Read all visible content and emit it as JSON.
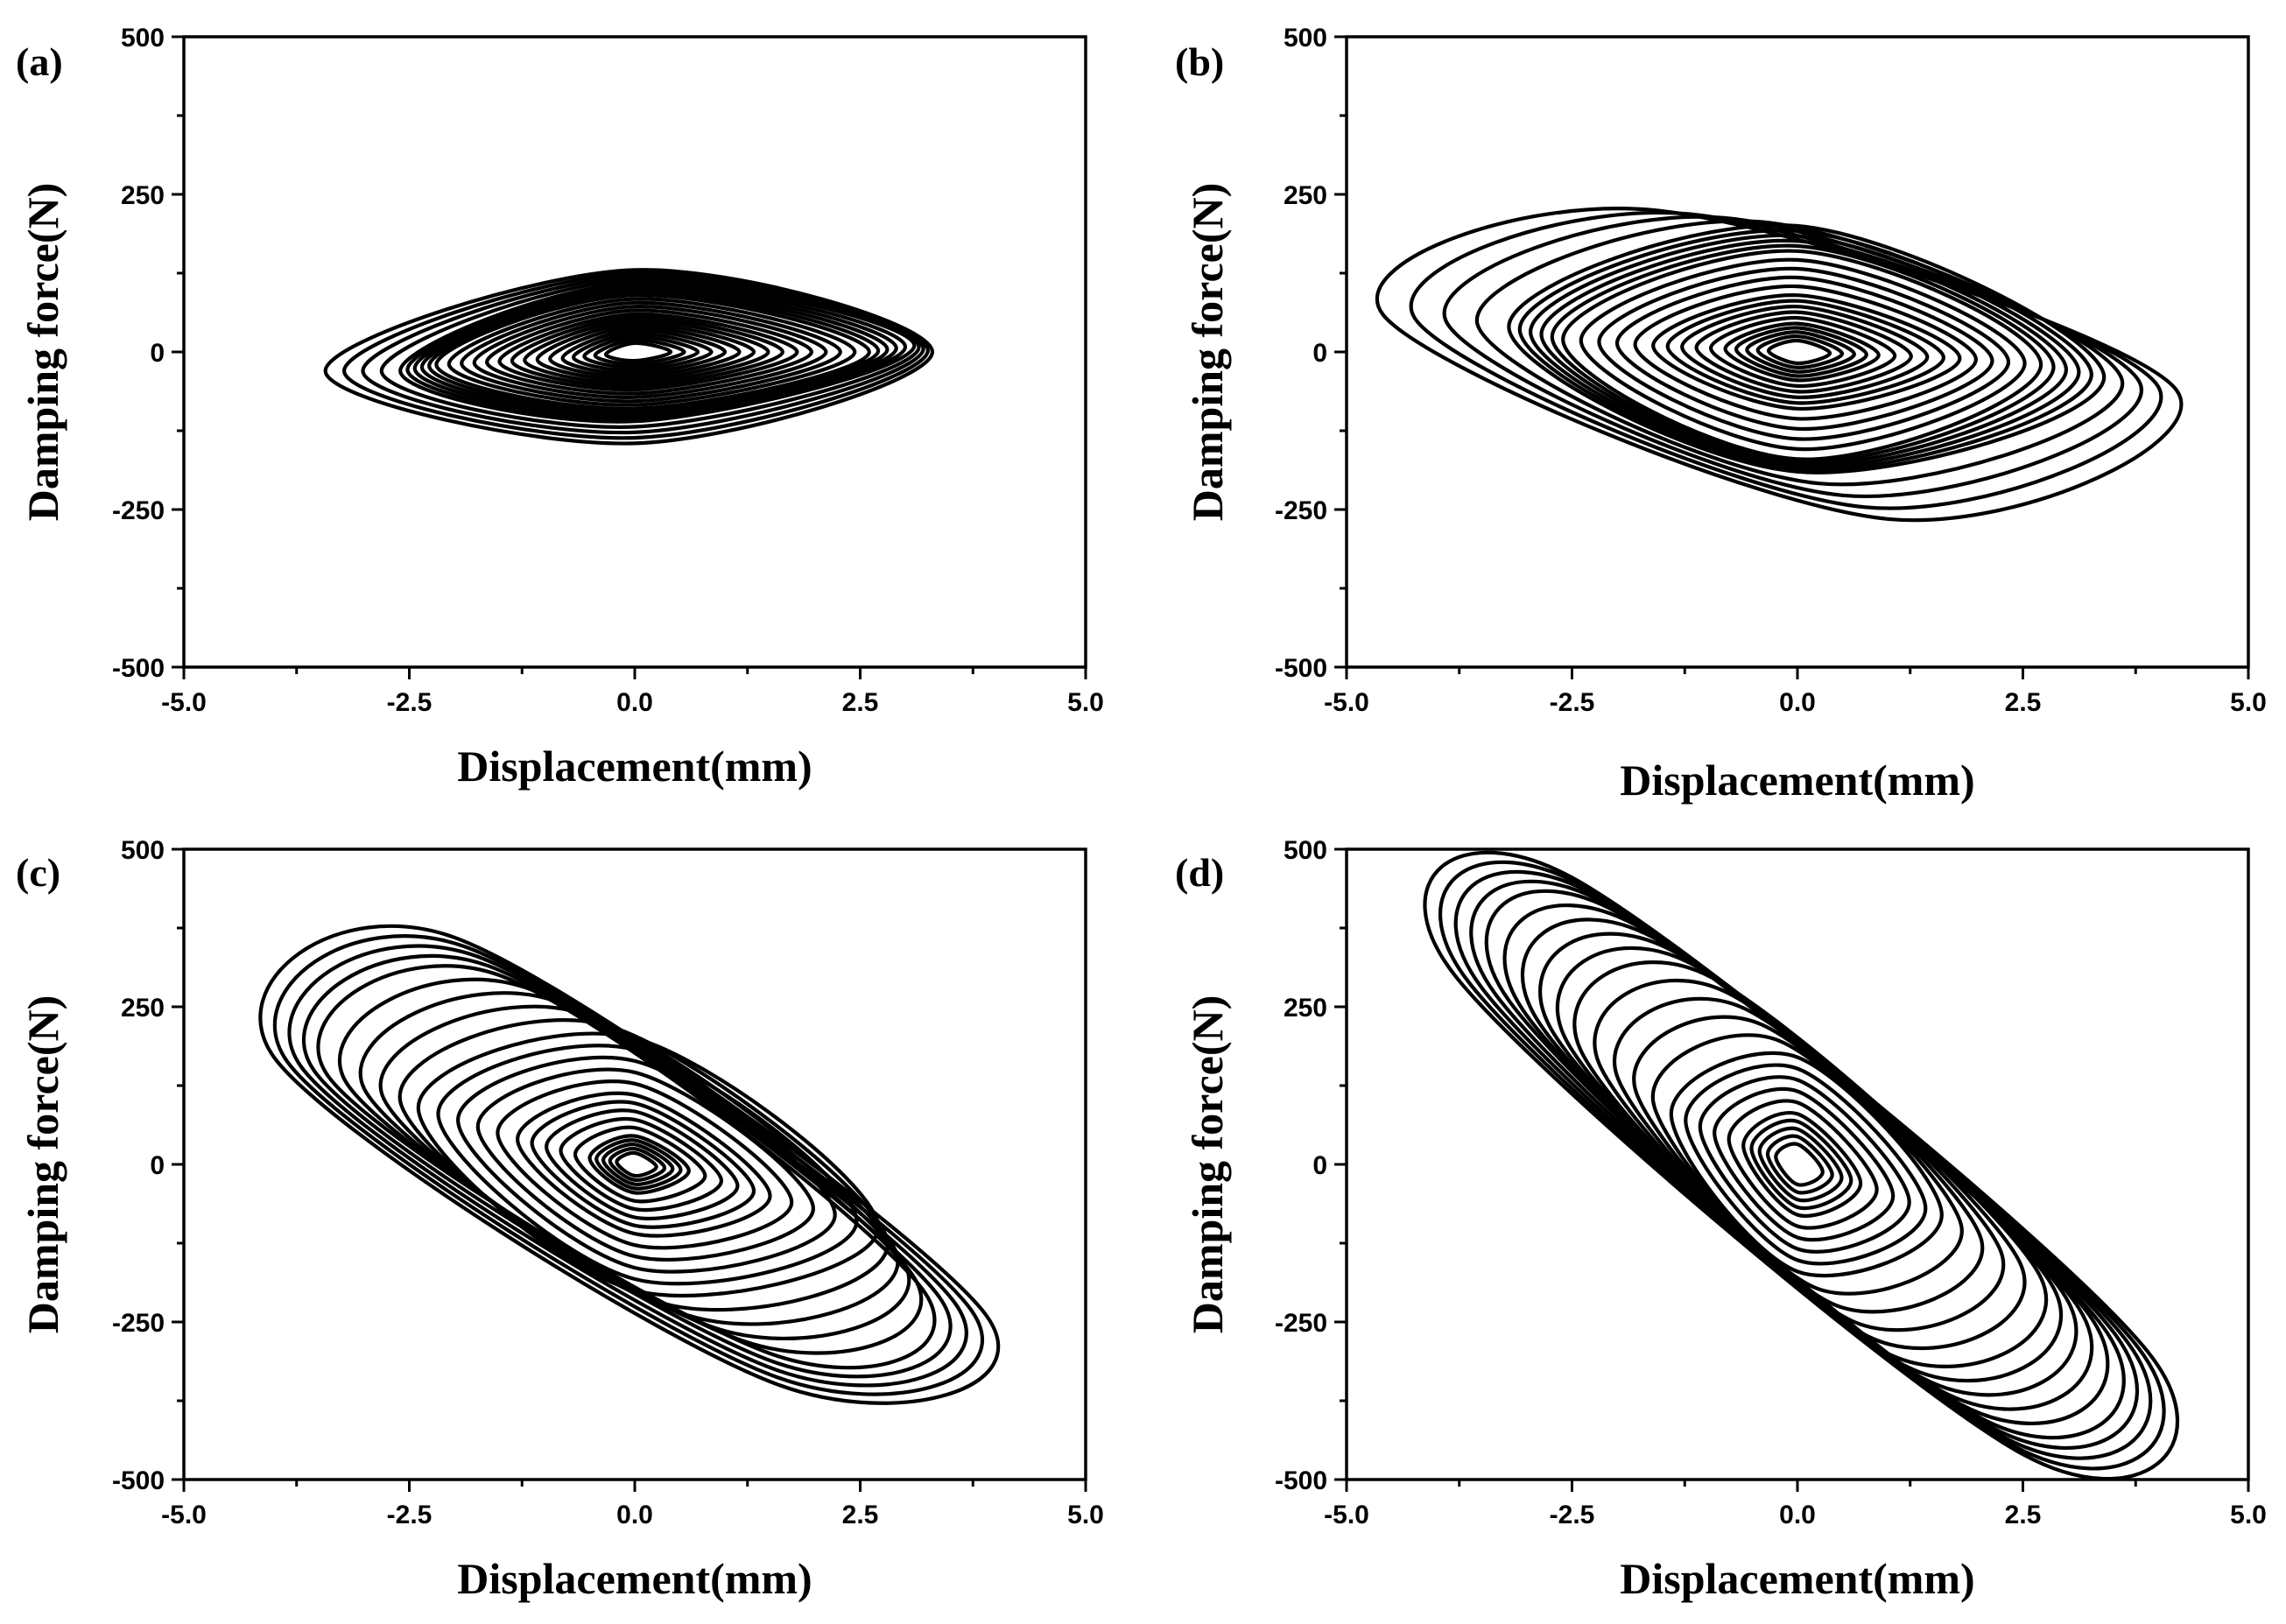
{
  "chart_data": [
    {
      "panel": "(a)",
      "type": "line",
      "xlabel": "Displacement(mm)",
      "ylabel": "Damping force(N)",
      "xlim": [
        -5.0,
        5.0
      ],
      "ylim": [
        -500,
        500
      ],
      "xticks": [
        "-5.0",
        "-2.5",
        "0.0",
        "2.5",
        "5.0"
      ],
      "yticks": [
        "500",
        "250",
        "0",
        "-250",
        "-500"
      ],
      "series": [
        {
          "x": [
            -3.43,
            0.0,
            3.3,
            0.0,
            -3.43
          ],
          "y": [
            -30,
            130,
            0,
            -145,
            -30
          ]
        },
        {
          "x": [
            -2.6,
            0.0,
            3.1,
            0.0,
            -2.6
          ],
          "y": [
            -30,
            110,
            10,
            -110,
            -30
          ]
        },
        {
          "x": [
            -2.2,
            0.0,
            2.6,
            0.0,
            -2.2
          ],
          "y": [
            -20,
            90,
            0,
            -90,
            -20
          ]
        },
        {
          "x": [
            -1.5,
            0.0,
            1.8,
            0.0,
            -1.5
          ],
          "y": [
            -15,
            60,
            0,
            -60,
            -15
          ]
        },
        {
          "x": [
            -0.8,
            0.0,
            1.0,
            0.0,
            -0.8
          ],
          "y": [
            -10,
            35,
            0,
            -35,
            -10
          ]
        }
      ]
    },
    {
      "panel": "(b)",
      "type": "line",
      "xlabel": "Displacement(mm)",
      "ylabel": "Damping force(N)",
      "xlim": [
        -5.0,
        5.0
      ],
      "ylim": [
        -500,
        500
      ],
      "xticks": [
        "-5.0",
        "-2.5",
        "0.0",
        "2.5",
        "5.0"
      ],
      "yticks": [
        "500",
        "250",
        "0",
        "-250",
        "-500"
      ],
      "series": [
        {
          "x": [
            -4.6,
            -1.6,
            4.2,
            1.0,
            -4.6
          ],
          "y": [
            60,
            225,
            -60,
            -265,
            60
          ]
        },
        {
          "x": [
            -3.2,
            0.0,
            3.4,
            0.0,
            -3.2
          ],
          "y": [
            40,
            200,
            -40,
            -190,
            40
          ]
        },
        {
          "x": [
            -2.6,
            0.0,
            2.7,
            0.0,
            -2.6
          ],
          "y": [
            20,
            160,
            -20,
            -170,
            20
          ]
        },
        {
          "x": [
            -1.6,
            0.0,
            1.8,
            0.0,
            -1.6
          ],
          "y": [
            10,
            90,
            -10,
            -90,
            10
          ]
        },
        {
          "x": [
            -0.8,
            0.0,
            0.9,
            0.0,
            -0.8
          ],
          "y": [
            5,
            45,
            -5,
            -45,
            5
          ]
        }
      ]
    },
    {
      "panel": "(c)",
      "type": "line",
      "xlabel": "Displacement(mm)",
      "ylabel": "Damping force(N)",
      "xlim": [
        -5.0,
        5.0
      ],
      "ylim": [
        -500,
        500
      ],
      "xticks": [
        "-5.0",
        "-2.5",
        "0.0",
        "2.5",
        "5.0"
      ],
      "yticks": [
        "500",
        "250",
        "0",
        "-250",
        "-500"
      ],
      "series": [
        {
          "x": [
            -4.0,
            -2.0,
            3.9,
            1.6,
            -4.0
          ],
          "y": [
            170,
            360,
            -240,
            -350,
            170
          ]
        },
        {
          "x": [
            -3.4,
            -1.5,
            3.2,
            1.5,
            -3.4
          ],
          "y": [
            140,
            300,
            -200,
            -300,
            140
          ]
        },
        {
          "x": [
            -2.4,
            0.0,
            2.7,
            0.0,
            -2.4
          ],
          "y": [
            90,
            200,
            -100,
            -200,
            90
          ]
        },
        {
          "x": [
            -1.3,
            0.0,
            1.5,
            0.0,
            -1.3
          ],
          "y": [
            40,
            110,
            -50,
            -110,
            40
          ]
        },
        {
          "x": [
            -0.5,
            0.0,
            0.6,
            0.0,
            -0.5
          ],
          "y": [
            10,
            45,
            -10,
            -45,
            10
          ]
        }
      ]
    },
    {
      "panel": "(d)",
      "type": "line",
      "xlabel": "Displacement(mm)",
      "ylabel": "Damping force(N)",
      "xlim": [
        -5.0,
        5.0
      ],
      "ylim": [
        -500,
        500
      ],
      "xticks": [
        "-5.0",
        "-2.5",
        "0.0",
        "2.5",
        "5.0"
      ],
      "yticks": [
        "500",
        "250",
        "0",
        "-250",
        "-500"
      ],
      "series": [
        {
          "x": [
            -3.8,
            -2.5,
            3.9,
            2.5,
            -3.8
          ],
          "y": [
            300,
            455,
            -300,
            -460,
            300
          ]
        },
        {
          "x": [
            -3.2,
            -2.0,
            3.4,
            2.0,
            -3.2
          ],
          "y": [
            260,
            400,
            -260,
            -400,
            260
          ]
        },
        {
          "x": [
            -2.4,
            -1.0,
            2.7,
            1.0,
            -2.4
          ],
          "y": [
            180,
            300,
            -180,
            -300,
            180
          ]
        },
        {
          "x": [
            -1.4,
            0.0,
            1.6,
            0.0,
            -1.4
          ],
          "y": [
            80,
            170,
            -80,
            -170,
            80
          ]
        },
        {
          "x": [
            -0.6,
            0.0,
            0.7,
            0.0,
            -0.6
          ],
          "y": [
            30,
            80,
            -30,
            -80,
            30
          ]
        }
      ]
    }
  ]
}
